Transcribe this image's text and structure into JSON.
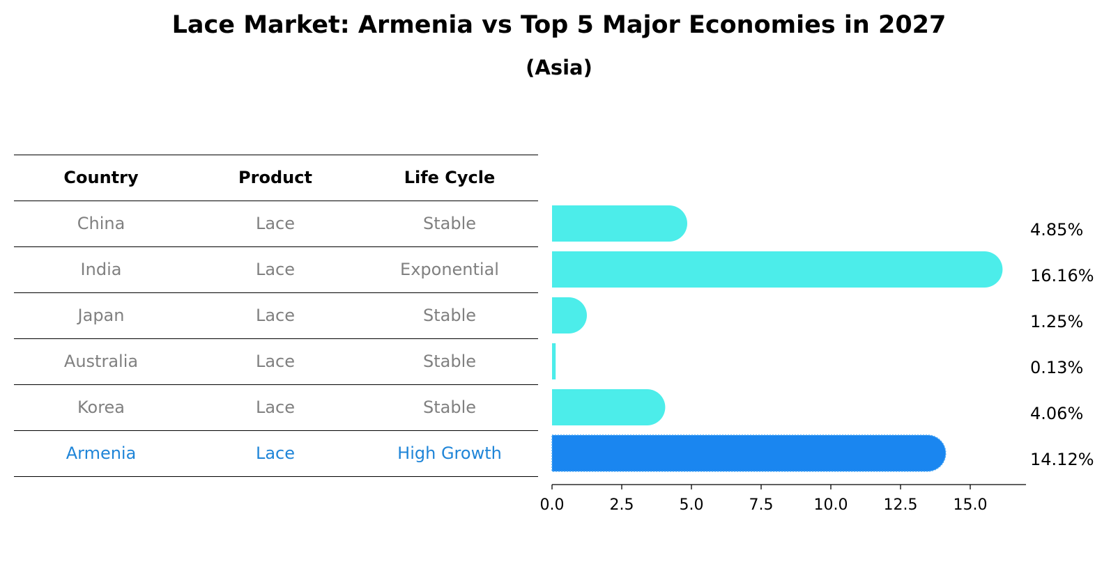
{
  "title": "Lace Market: Armenia vs Top 5 Major Economies in 2027",
  "subtitle": "(Asia)",
  "table": {
    "headers": [
      "Country",
      "Product",
      "Life Cycle"
    ],
    "rows": [
      {
        "country": "China",
        "product": "Lace",
        "life_cycle": "Stable",
        "highlight": false
      },
      {
        "country": "India",
        "product": "Lace",
        "life_cycle": "Exponential",
        "highlight": false
      },
      {
        "country": "Japan",
        "product": "Lace",
        "life_cycle": "Stable",
        "highlight": false
      },
      {
        "country": "Australia",
        "product": "Lace",
        "life_cycle": "Stable",
        "highlight": false
      },
      {
        "country": "Korea",
        "product": "Lace",
        "life_cycle": "Stable",
        "highlight": false
      },
      {
        "country": "Armenia",
        "product": "Lace",
        "life_cycle": "High Growth",
        "highlight": true
      }
    ]
  },
  "colors": {
    "bar": "#4cedea",
    "highlight_bar": "#1a86f0",
    "muted_text": "#808080",
    "highlight_text": "#1f85d8"
  },
  "chart_data": {
    "type": "bar",
    "orientation": "horizontal",
    "categories": [
      "China",
      "India",
      "Japan",
      "Australia",
      "Korea",
      "Armenia"
    ],
    "values": [
      4.85,
      16.16,
      1.25,
      0.13,
      4.06,
      14.12
    ],
    "value_labels": [
      "4.85%",
      "16.16%",
      "1.25%",
      "0.13%",
      "4.06%",
      "14.12%"
    ],
    "xlim": [
      0,
      17
    ],
    "xticks": [
      0.0,
      2.5,
      5.0,
      7.5,
      10.0,
      12.5,
      15.0
    ],
    "xtick_labels": [
      "0.0",
      "2.5",
      "5.0",
      "7.5",
      "10.0",
      "12.5",
      "15.0"
    ],
    "highlight_category": "Armenia",
    "grid": false
  }
}
